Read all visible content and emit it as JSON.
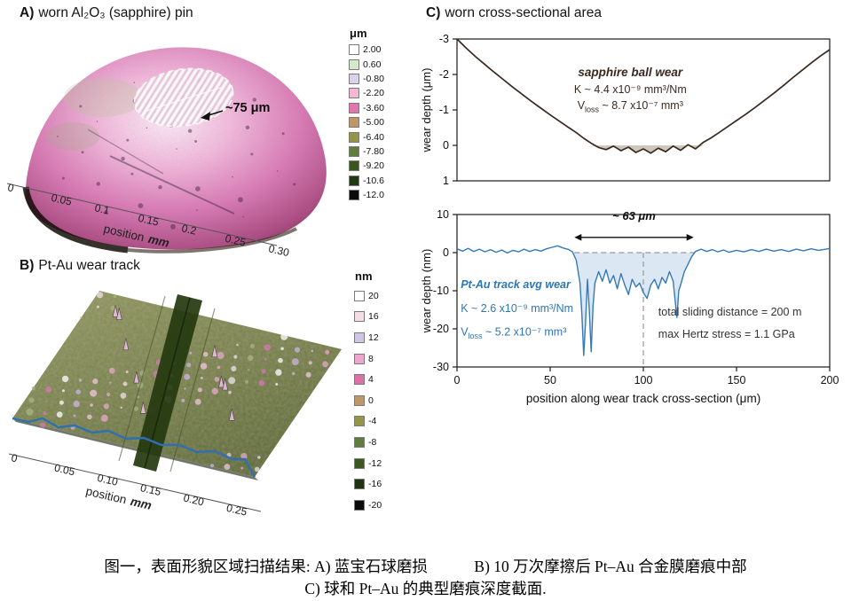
{
  "panel_a": {
    "label_prefix": "A)",
    "label": "worn Al₂O₃ (sapphire) pin",
    "scar_label": "~75 μm",
    "axis_label": "position",
    "axis_label_unit": "mm",
    "axis_ticks": [
      "0",
      "0.05",
      "0.1",
      "0.15",
      "0.2",
      "0.25",
      "0.30"
    ],
    "colorbar": {
      "title": "μm",
      "entries": [
        {
          "label": "2.00",
          "color": "#ffffff"
        },
        {
          "label": "0.60",
          "color": "#d6e8c8"
        },
        {
          "label": "-0.80",
          "color": "#d9d2e9"
        },
        {
          "label": "-2.20",
          "color": "#f4b8d4"
        },
        {
          "label": "-3.60",
          "color": "#e277ae"
        },
        {
          "label": "-5.00",
          "color": "#bf9665"
        },
        {
          "label": "-6.40",
          "color": "#94944a"
        },
        {
          "label": "-7.80",
          "color": "#5f7d3c"
        },
        {
          "label": "-9.20",
          "color": "#39571f"
        },
        {
          "label": "-10.6",
          "color": "#1f3a10"
        },
        {
          "label": "-12.0",
          "color": "#0a0a0a"
        }
      ]
    }
  },
  "panel_b": {
    "label_prefix": "B)",
    "label": "Pt-Au wear track",
    "axis_label": "position",
    "axis_label_unit": "mm",
    "axis_ticks": [
      "0",
      "0.05",
      "0.10",
      "0.15",
      "0.20",
      "0.25"
    ],
    "colorbar": {
      "title": "nm",
      "entries": [
        {
          "label": "20",
          "color": "#ffffff"
        },
        {
          "label": "16",
          "color": "#f3dde6"
        },
        {
          "label": "12",
          "color": "#cfc6e6"
        },
        {
          "label": "8",
          "color": "#f0a5cc"
        },
        {
          "label": "4",
          "color": "#de6fa8"
        },
        {
          "label": "0",
          "color": "#bf9665"
        },
        {
          "label": "-4",
          "color": "#94944a"
        },
        {
          "label": "-8",
          "color": "#5f7d3c"
        },
        {
          "label": "-12",
          "color": "#39571f"
        },
        {
          "label": "-16",
          "color": "#1c3410"
        },
        {
          "label": "-20",
          "color": "#0a0a0a"
        }
      ]
    }
  },
  "panel_c": {
    "label_prefix": "C)",
    "label": "worn cross-sectional area"
  },
  "caption": {
    "line1": "图一，表面形貌区域扫描结果: A) 蓝宝石球磨损　　　B) 10 万次摩擦后 Pt–Au 合金膜磨痕中部",
    "line2": "C) 球和 Pt–Au 的典型磨痕深度截面."
  },
  "chart_data": [
    {
      "id": "sapphire-surface",
      "type": "heatmap",
      "subtype": "3d-surface-topography",
      "title": "worn Al₂O₃ (sapphire) pin",
      "xlabel": "position (mm)",
      "x_ticks": [
        "0",
        "0.05",
        "0.1",
        "0.15",
        "0.2",
        "0.25",
        "0.30"
      ],
      "color_scale_unit": "μm",
      "color_scale_range": [
        -12.0,
        2.0
      ],
      "annotation": "~75 μm"
    },
    {
      "id": "ptau-surface",
      "type": "heatmap",
      "subtype": "3d-surface-topography",
      "title": "Pt-Au wear track",
      "xlabel": "position (mm)",
      "x_ticks": [
        "0",
        "0.05",
        "0.10",
        "0.15",
        "0.20",
        "0.25"
      ],
      "color_scale_unit": "nm",
      "color_scale_range": [
        -20,
        20
      ],
      "annotation": ""
    },
    {
      "id": "sapphire-wear-profile",
      "type": "line",
      "title": "sapphire ball wear",
      "ylabel": "wear depth (μm)",
      "xlabel": "",
      "xdomain": [
        0,
        200
      ],
      "ydomain": [
        -3,
        1
      ],
      "yticks": [
        -3,
        -2,
        -1,
        0,
        1
      ],
      "xticks": [],
      "line_color": "#3a2a1e",
      "line_width": 1.7,
      "fill_color": "#c9c1b6",
      "fill_region": {
        "x1": 72,
        "x2": 132,
        "clamp": "pos"
      },
      "points": [
        [
          0,
          -3.0
        ],
        [
          5,
          -2.74
        ],
        [
          10,
          -2.5
        ],
        [
          15,
          -2.28
        ],
        [
          20,
          -2.06
        ],
        [
          25,
          -1.85
        ],
        [
          30,
          -1.64
        ],
        [
          35,
          -1.44
        ],
        [
          40,
          -1.24
        ],
        [
          45,
          -1.05
        ],
        [
          50,
          -0.86
        ],
        [
          55,
          -0.68
        ],
        [
          60,
          -0.5
        ],
        [
          64,
          -0.36
        ],
        [
          68,
          -0.2
        ],
        [
          72,
          -0.06
        ],
        [
          76,
          0.06
        ],
        [
          80,
          0.12
        ],
        [
          84,
          0.02
        ],
        [
          88,
          0.15
        ],
        [
          92,
          0.05
        ],
        [
          96,
          0.2
        ],
        [
          100,
          0.1
        ],
        [
          104,
          0.22
        ],
        [
          108,
          0.08
        ],
        [
          112,
          0.18
        ],
        [
          116,
          0.02
        ],
        [
          120,
          0.14
        ],
        [
          124,
          -0.02
        ],
        [
          128,
          0.1
        ],
        [
          132,
          -0.08
        ],
        [
          136,
          -0.2
        ],
        [
          140,
          -0.34
        ],
        [
          145,
          -0.52
        ],
        [
          150,
          -0.7
        ],
        [
          155,
          -0.88
        ],
        [
          160,
          -1.07
        ],
        [
          165,
          -1.27
        ],
        [
          170,
          -1.47
        ],
        [
          175,
          -1.68
        ],
        [
          180,
          -1.9
        ],
        [
          185,
          -2.11
        ],
        [
          190,
          -2.32
        ],
        [
          195,
          -2.52
        ],
        [
          200,
          -2.7
        ]
      ],
      "texts": [
        {
          "x": 93,
          "y": -1.95,
          "text": "sapphire ball wear",
          "color": "#3a2a1e",
          "weight": "bold",
          "style": "italic",
          "anchor": "middle",
          "size": 13.5
        },
        {
          "x": 93,
          "y": -1.48,
          "text": "K ~ 4.4 x10⁻⁹ mm³/Nm",
          "color": "#3a2a1e",
          "anchor": "middle",
          "size": 12.5
        },
        {
          "x": 93,
          "y": -1.02,
          "text": "V_{loss} ~ 8.7 x10⁻⁷ mm³",
          "color": "#3a2a1e",
          "anchor": "middle",
          "size": 12.5
        }
      ]
    },
    {
      "id": "ptau-wear-profile",
      "type": "line",
      "title": "Pt-Au track avg wear",
      "ylabel": "wear depth (nm)",
      "xlabel": "position along wear track cross-section (μm)",
      "xdomain": [
        0,
        200
      ],
      "ydomain": [
        10,
        -30
      ],
      "yticks": [
        10,
        0,
        -10,
        -20,
        -30
      ],
      "xticks": [
        0,
        50,
        100,
        150,
        200
      ],
      "line_color": "#3579b8",
      "line_width": 1.4,
      "fill_color": "#d7e5f2",
      "fill_region": {
        "x1": 62,
        "x2": 128,
        "clamp": "neg"
      },
      "dashed_lines": [
        {
          "x1": 63,
          "y1": 0,
          "x2": 128,
          "y2": 0
        },
        {
          "x1": 100,
          "y1": 0,
          "x2": 100,
          "y2": -30
        }
      ],
      "arrow": {
        "x1": 63,
        "x2": 127,
        "y": 4,
        "label": "~ 63 μm",
        "label_x": 95,
        "label_y": 8.6
      },
      "points": [
        [
          0,
          1.0
        ],
        [
          3,
          0.4
        ],
        [
          6,
          1.1
        ],
        [
          9,
          0.3
        ],
        [
          12,
          0.9
        ],
        [
          15,
          0.2
        ],
        [
          18,
          0.8
        ],
        [
          21,
          0.1
        ],
        [
          24,
          0.7
        ],
        [
          27,
          -0.1
        ],
        [
          30,
          0.6
        ],
        [
          33,
          0.2
        ],
        [
          36,
          0.9
        ],
        [
          39,
          0.3
        ],
        [
          42,
          0.8
        ],
        [
          45,
          0.4
        ],
        [
          48,
          1.0
        ],
        [
          51,
          1.4
        ],
        [
          54,
          1.8
        ],
        [
          57,
          1.2
        ],
        [
          60,
          0.8
        ],
        [
          62,
          0.2
        ],
        [
          64,
          -2.0
        ],
        [
          66,
          -8.0
        ],
        [
          67,
          -16.0
        ],
        [
          68,
          -27.0
        ],
        [
          69,
          -18.0
        ],
        [
          70,
          -7.0
        ],
        [
          71,
          -15.0
        ],
        [
          72,
          -26.0
        ],
        [
          73,
          -14.0
        ],
        [
          74,
          -8.0
        ],
        [
          76,
          -5.0
        ],
        [
          78,
          -7.5
        ],
        [
          80,
          -4.5
        ],
        [
          82,
          -8.0
        ],
        [
          84,
          -6.0
        ],
        [
          86,
          -9.5
        ],
        [
          88,
          -5.5
        ],
        [
          90,
          -8.5
        ],
        [
          92,
          -11.0
        ],
        [
          94,
          -7.0
        ],
        [
          96,
          -9.0
        ],
        [
          98,
          -8.0
        ],
        [
          100,
          -10.5
        ],
        [
          102,
          -12.0
        ],
        [
          104,
          -8.5
        ],
        [
          106,
          -7.0
        ],
        [
          108,
          -9.5
        ],
        [
          110,
          -6.5
        ],
        [
          112,
          -8.0
        ],
        [
          114,
          -5.0
        ],
        [
          116,
          -7.5
        ],
        [
          118,
          -17.0
        ],
        [
          119,
          -10.0
        ],
        [
          120,
          -8.5
        ],
        [
          122,
          -5.0
        ],
        [
          124,
          -3.0
        ],
        [
          126,
          -1.0
        ],
        [
          128,
          0.3
        ],
        [
          131,
          0.9
        ],
        [
          134,
          0.3
        ],
        [
          137,
          0.8
        ],
        [
          140,
          0.2
        ],
        [
          143,
          0.7
        ],
        [
          146,
          0.1
        ],
        [
          150,
          0.6
        ],
        [
          154,
          0.2
        ],
        [
          158,
          0.8
        ],
        [
          162,
          0.3
        ],
        [
          166,
          0.9
        ],
        [
          170,
          0.4
        ],
        [
          174,
          0.8
        ],
        [
          178,
          0.3
        ],
        [
          182,
          0.9
        ],
        [
          186,
          0.5
        ],
        [
          190,
          1.0
        ],
        [
          194,
          0.6
        ],
        [
          198,
          0.9
        ],
        [
          200,
          1.1
        ]
      ],
      "texts": [
        {
          "x": 2,
          "y": -9.3,
          "text": "Pt-Au track avg wear",
          "color": "#2e75b6",
          "weight": "bold",
          "style": "italic",
          "anchor": "start",
          "size": 12.5
        },
        {
          "x": 2,
          "y": -15.6,
          "text": "K ~ 2.6 x10⁻⁹ mm³/Nm",
          "color": "#2e75b6",
          "anchor": "start",
          "size": 12.5
        },
        {
          "x": 2,
          "y": -21.8,
          "text": "V_{loss} ~ 5.2 x10⁻⁷ mm³",
          "color": "#2e75b6",
          "anchor": "start",
          "size": 12.5
        },
        {
          "x": 108,
          "y": -16.5,
          "text": "total sliding distance = 200 m",
          "color": "#333333",
          "anchor": "start",
          "size": 12.5
        },
        {
          "x": 108,
          "y": -22.3,
          "text": "max Hertz stress = 1.1 GPa",
          "color": "#333333",
          "anchor": "start",
          "size": 12.5
        }
      ]
    }
  ]
}
